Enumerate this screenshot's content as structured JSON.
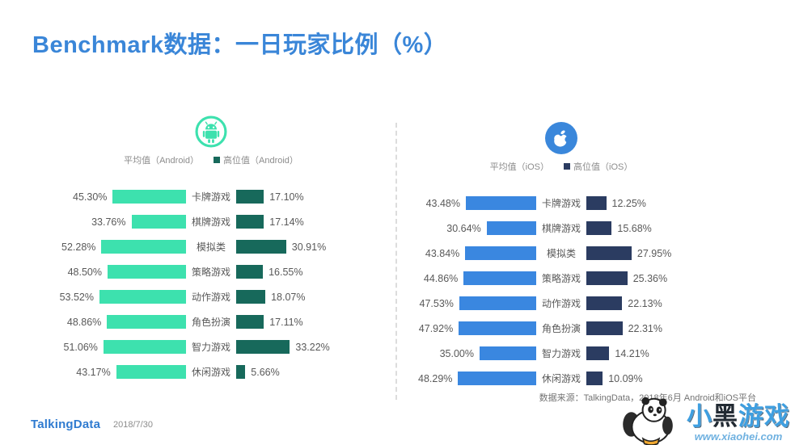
{
  "title": "Benchmark数据：一日玩家比例（%）",
  "colors": {
    "title_blue": "#3a86d8",
    "android_avg": "#3de1ae",
    "android_high": "#17695b",
    "ios_avg": "#3a87e0",
    "ios_high": "#2b3c61",
    "divider_gray": "#dcdcdc"
  },
  "chart_data": [
    {
      "type": "bar",
      "platform": "Android",
      "icon": "android-icon",
      "legend": [
        {
          "label": "平均值（Android）",
          "color": "#3de1ae",
          "marker": false
        },
        {
          "label": "高位值（Android）",
          "color": "#17695b",
          "marker": true
        }
      ],
      "categories": [
        "卡牌游戏",
        "棋牌游戏",
        "模拟类",
        "策略游戏",
        "动作游戏",
        "角色扮演",
        "智力游戏",
        "休闲游戏"
      ],
      "series": [
        {
          "name": "平均值（Android）",
          "side": "left",
          "color": "#3de1ae",
          "values": [
            45.3,
            33.76,
            52.28,
            48.5,
            53.52,
            48.86,
            51.06,
            43.17
          ]
        },
        {
          "name": "高位值（Android）",
          "side": "right",
          "color": "#17695b",
          "values": [
            17.1,
            17.14,
            30.91,
            16.55,
            18.07,
            17.11,
            33.22,
            5.66
          ]
        }
      ],
      "value_suffix": "%",
      "xlim_percent": [
        0,
        55
      ],
      "orientation": "horizontal-mirrored"
    },
    {
      "type": "bar",
      "platform": "iOS",
      "icon": "apple-icon",
      "legend": [
        {
          "label": "平均值（iOS）",
          "color": "#3a87e0",
          "marker": false
        },
        {
          "label": "高位值（iOS）",
          "color": "#2b3c61",
          "marker": true
        }
      ],
      "categories": [
        "卡牌游戏",
        "棋牌游戏",
        "模拟类",
        "策略游戏",
        "动作游戏",
        "角色扮演",
        "智力游戏",
        "休闲游戏"
      ],
      "series": [
        {
          "name": "平均值（iOS）",
          "side": "left",
          "color": "#3a87e0",
          "values": [
            43.48,
            30.64,
            43.84,
            44.86,
            47.53,
            47.92,
            35.0,
            48.29
          ]
        },
        {
          "name": "高位值（iOS）",
          "side": "right",
          "color": "#2b3c61",
          "values": [
            12.25,
            15.68,
            27.95,
            25.36,
            22.13,
            22.31,
            14.21,
            10.09
          ]
        }
      ],
      "value_suffix": "%",
      "xlim_percent": [
        0,
        55
      ],
      "orientation": "horizontal-mirrored"
    }
  ],
  "footer": {
    "logo": "TalkingData",
    "date": "2018/7/30",
    "source": "数据来源：TalkingData，2018年6月 Android和iOS平台"
  },
  "watermark": {
    "title": "小黑游戏",
    "url": "www.xiaohei.com"
  }
}
